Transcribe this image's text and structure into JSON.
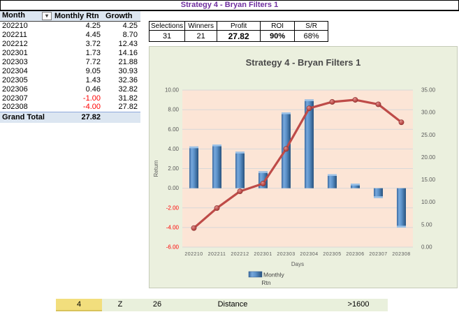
{
  "title_bar": {
    "text": "Strategy 4 - Bryan Filters 1"
  },
  "pivot_table": {
    "columns": [
      "Month",
      "Monthly Rtn",
      "Growth"
    ],
    "filter_button_glyph": "▾",
    "rows": [
      [
        "202210",
        "4.25",
        "4.25"
      ],
      [
        "202211",
        "4.45",
        "8.70"
      ],
      [
        "202212",
        "3.72",
        "12.43"
      ],
      [
        "202301",
        "1.73",
        "14.16"
      ],
      [
        "202303",
        "7.72",
        "21.88"
      ],
      [
        "202304",
        "9.05",
        "30.93"
      ],
      [
        "202305",
        "1.43",
        "32.36"
      ],
      [
        "202306",
        "0.46",
        "32.82"
      ],
      [
        "202307",
        "-1.00",
        "31.82"
      ],
      [
        "202308",
        "-4.00",
        "27.82"
      ]
    ],
    "grand_total": {
      "label": "Grand Total",
      "value": "27.82"
    }
  },
  "summary_table": {
    "headers": [
      "Selections",
      "Winners",
      "Profit",
      "ROI",
      "S/R"
    ],
    "values": [
      "31",
      "21",
      "27.82",
      "90%",
      "68%"
    ]
  },
  "chart_data": {
    "type": "bar",
    "title": "Strategy 4 - Bryan Filters 1",
    "categories": [
      "202210",
      "202211",
      "202212",
      "202301",
      "202303",
      "202304",
      "202305",
      "202306",
      "202307",
      "202308"
    ],
    "series": [
      {
        "name": "Monthly Rtn",
        "type": "bar",
        "axis": "left",
        "color": "#4F81BD",
        "values": [
          4.25,
          4.45,
          3.72,
          1.73,
          7.72,
          9.05,
          1.43,
          0.46,
          -1.0,
          -4.0
        ]
      },
      {
        "name": "Growth",
        "type": "line",
        "axis": "right",
        "color": "#BE4B48",
        "values": [
          4.25,
          8.7,
          12.43,
          14.16,
          21.88,
          30.93,
          32.36,
          32.82,
          31.82,
          27.82
        ]
      }
    ],
    "xlabel": "Days",
    "ylabel": "Return",
    "left_axis": {
      "min": -6,
      "max": 10,
      "step": 2
    },
    "right_axis": {
      "min": 0,
      "max": 35,
      "step": 5
    },
    "legend": {
      "entries": [
        "Monthly Rtn"
      ],
      "position": "bottom"
    },
    "grid": true
  },
  "footer": {
    "cells": [
      {
        "text": "4"
      },
      {
        "text": "Z"
      },
      {
        "text": "26"
      },
      {
        "text": "Distance"
      },
      {
        "text": ">1600"
      }
    ]
  },
  "colors": {
    "title_text": "#7030A0",
    "pivot_header_fill": "#DCE6F1",
    "negative_text": "#FF0000",
    "chart_area_fill": "#EBF0DE",
    "plot_area_fill": "#FCE5D6",
    "bar_fill": "#4F81BD",
    "line_stroke": "#BE4B48",
    "footer_yellow": "#F2DE7D",
    "footer_green": "#E9F0DC"
  }
}
